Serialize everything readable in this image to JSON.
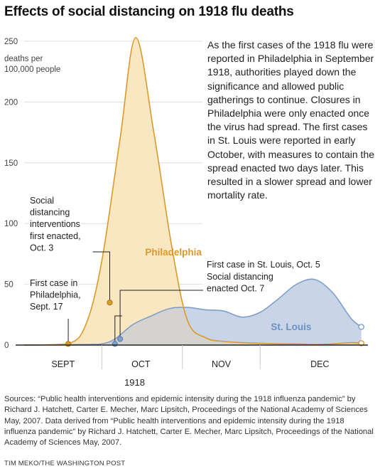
{
  "title": "Effects of social distancing on 1918 flu deaths",
  "narrative": "As the first cases of the 1918 flu were reported in Philadelphia in September 1918, authorities played down the significance and allowed public gatherings to continue. Closures in Philadelphia were only enacted once the virus had spread. The first cases in St. Louis were reported in early October, with measures to contain the spread enacted two days later. This resulted in a slower spread and lower mortality rate.",
  "sources": "Sources: “Public health interventions and epidemic intensity during the 1918 influenza pandemic” by Richard J. Hatchett, Carter E. Mecher, Marc Lipsitch, Proceedings of the National Academy of Sciences May, 2007. Data derived from “Public health interventions and epidemic intensity during the 1918 influenza pandemic” by Richard J. Hatchett, Carter E. Mecher, Marc Lipsitch, Proceedings of the National Academy of Sciences May, 2007.",
  "credit": "TIM MEKO/THE WASHINGTON POST",
  "colors": {
    "philadelphia": "#d99a2b",
    "philadelphia_fill": "#f8e7c0",
    "st_louis": "#7f9fc9",
    "st_louis_fill": "#c9d5e6",
    "overlap_fill": "#d5d3cf",
    "grid": "#dddddd",
    "axis": "#222222",
    "annotation": "#222222"
  },
  "chart_data": {
    "type": "area",
    "title": "Effects of social distancing on 1918 flu deaths",
    "xlabel": "1918",
    "ylabel": "deaths per 100,000 people",
    "x_unit": "days since Sept. 1, 1918",
    "xlim": [
      0,
      132
    ],
    "ylim": [
      0,
      250
    ],
    "yticks": [
      0,
      50,
      100,
      150,
      200,
      250
    ],
    "x_tick_labels": [
      {
        "label": "SEPT",
        "x": 15
      },
      {
        "label": "OCT",
        "x": 45
      },
      {
        "label": "NOV",
        "x": 76
      },
      {
        "label": "DEC",
        "x": 114
      }
    ],
    "month_boundaries": [
      30,
      61,
      91
    ],
    "grid": true,
    "series": [
      {
        "name": "Philadelphia",
        "x": [
          0,
          17,
          24,
          30,
          37,
          43,
          50,
          57,
          63,
          70,
          77,
          84,
          91,
          98,
          105,
          112,
          119,
          126,
          130
        ],
        "y": [
          0,
          1,
          18,
          70,
          170,
          253,
          175,
          80,
          20,
          6,
          3,
          2,
          1.5,
          1,
          1,
          0.5,
          1,
          2,
          1.5
        ]
      },
      {
        "name": "St. Louis",
        "x": [
          0,
          24,
          30,
          35,
          42,
          49,
          56,
          63,
          70,
          77,
          84,
          91,
          98,
          105,
          112,
          119,
          126,
          130
        ],
        "y": [
          0,
          0.5,
          1,
          5,
          17,
          24,
          30,
          31,
          29,
          28,
          23,
          27,
          38,
          50,
          54,
          43,
          22,
          15
        ]
      }
    ],
    "markers": [
      {
        "name": "First case in Philadelphia, Sept. 17",
        "series": "Philadelphia",
        "x": 17,
        "y": 1
      },
      {
        "name": "Social distancing interventions first enacted, Oct. 3",
        "series": "Philadelphia",
        "x": 33,
        "y": 35
      },
      {
        "name": "First case in St. Louis, Oct. 5",
        "series": "St. Louis",
        "x": 35,
        "y": 1
      },
      {
        "name": "Social distancing enacted Oct. 7",
        "series": "St. Louis",
        "x": 37,
        "y": 5
      }
    ],
    "series_labels": [
      {
        "text": "Philadelphia",
        "series": "Philadelphia"
      },
      {
        "text": "St. Louis",
        "series": "St. Louis"
      }
    ],
    "annotations": [
      {
        "id": "phl-first",
        "lines": [
          "First case in",
          "Philadelphia,",
          "Sept. 17"
        ]
      },
      {
        "id": "phl-sd",
        "lines": [
          "Social",
          "distancing",
          "interventions",
          "first enacted,",
          "Oct. 3"
        ]
      },
      {
        "id": "stl-first",
        "lines": [
          "First case in St. Louis, Oct. 5"
        ]
      },
      {
        "id": "stl-sd",
        "lines": [
          "Social distancing",
          "enacted Oct. 7"
        ]
      }
    ]
  }
}
